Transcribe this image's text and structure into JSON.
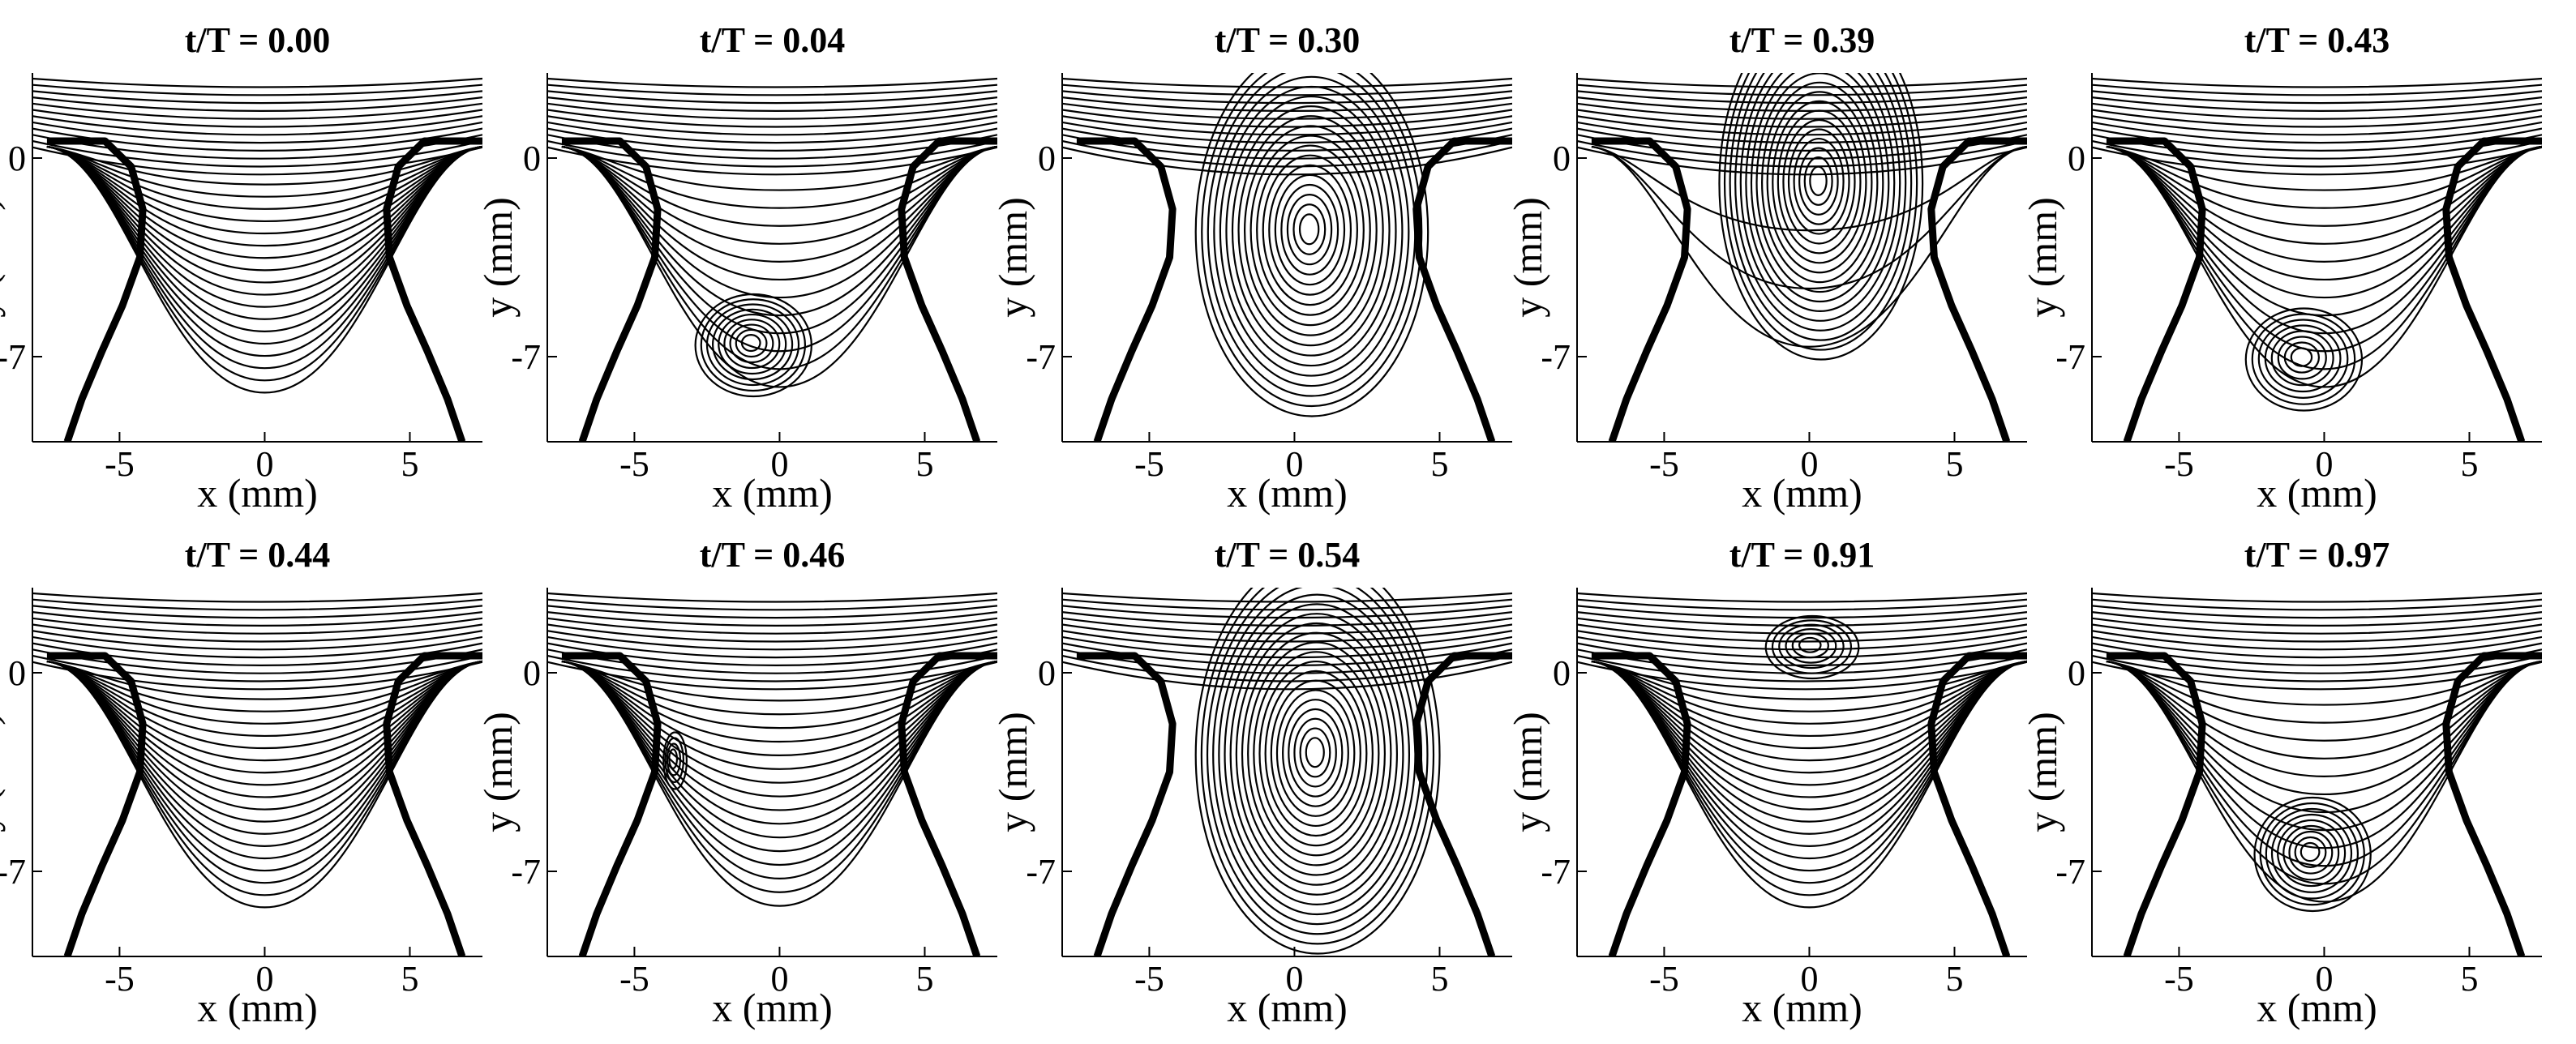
{
  "chart_data": [
    {
      "type": "contour",
      "title": "t/T = 0.00",
      "xlabel": "x (mm)",
      "ylabel": "y (mm)",
      "xticks": [
        -5,
        0,
        5
      ],
      "yticks": [
        0,
        -7
      ],
      "xlim": [
        -8,
        7.5
      ],
      "ylim": [
        -10,
        3
      ],
      "streamlines": 18,
      "vortex": null
    },
    {
      "type": "contour",
      "title": "t/T = 0.04",
      "xlabel": "x (mm)",
      "ylabel": "y (mm)",
      "xticks": [
        -5,
        0,
        5
      ],
      "yticks": [
        0,
        -7
      ],
      "xlim": [
        -8,
        7.5
      ],
      "ylim": [
        -10,
        3
      ],
      "streamlines": 12,
      "vortex": {
        "x": -1.0,
        "y": -6.5,
        "rx": 2.0,
        "ry": 1.8,
        "rings": 9
      }
    },
    {
      "type": "contour",
      "title": "t/T = 0.30",
      "xlabel": "x (mm)",
      "ylabel": "y (mm)",
      "xticks": [
        -5,
        0,
        5
      ],
      "yticks": [
        0,
        -7
      ],
      "xlim": [
        -8,
        7.5
      ],
      "ylim": [
        -10,
        3
      ],
      "streamlines": 0,
      "vortex": {
        "x": 0.5,
        "y": -2.5,
        "rx": 4.0,
        "ry": 6.5,
        "rings": 18
      }
    },
    {
      "type": "contour",
      "title": "t/T = 0.39",
      "xlabel": "x (mm)",
      "ylabel": "y (mm)",
      "xticks": [
        -5,
        0,
        5
      ],
      "yticks": [
        0,
        -7
      ],
      "xlim": [
        -8,
        7.5
      ],
      "ylim": [
        -10,
        3
      ],
      "streamlines": 3,
      "vortex": {
        "x": 0.3,
        "y": -0.8,
        "rx": 3.5,
        "ry": 6.2,
        "rings": 18
      }
    },
    {
      "type": "contour",
      "title": "t/T = 0.43",
      "xlabel": "x (mm)",
      "ylabel": "y (mm)",
      "xticks": [
        -5,
        0,
        5
      ],
      "yticks": [
        0,
        -7
      ],
      "xlim": [
        -8,
        7.5
      ],
      "ylim": [
        -10,
        3
      ],
      "streamlines": 12,
      "vortex": {
        "x": -0.8,
        "y": -7.0,
        "rx": 2.0,
        "ry": 1.8,
        "rings": 8
      }
    },
    {
      "type": "contour",
      "title": "t/T = 0.44",
      "xlabel": "x (mm)",
      "ylabel": "y (mm)",
      "xticks": [
        -5,
        0,
        5
      ],
      "yticks": [
        0,
        -7
      ],
      "xlim": [
        -8,
        7.5
      ],
      "ylim": [
        -10,
        3
      ],
      "streamlines": 18,
      "vortex": null
    },
    {
      "type": "contour",
      "title": "t/T = 0.46",
      "xlabel": "x (mm)",
      "ylabel": "y (mm)",
      "xticks": [
        -5,
        0,
        5
      ],
      "yticks": [
        0,
        -7
      ],
      "xlim": [
        -8,
        7.5
      ],
      "ylim": [
        -10,
        3
      ],
      "streamlines": 16,
      "vortex": {
        "x": -3.7,
        "y": -3.0,
        "rx": 0.4,
        "ry": 1.0,
        "rings": 4
      }
    },
    {
      "type": "contour",
      "title": "t/T = 0.54",
      "xlabel": "x (mm)",
      "ylabel": "y (mm)",
      "xticks": [
        -5,
        0,
        5
      ],
      "yticks": [
        0,
        -7
      ],
      "xlim": [
        -8,
        7.5
      ],
      "ylim": [
        -10,
        3
      ],
      "streamlines": 0,
      "vortex": {
        "x": 0.7,
        "y": -2.8,
        "rx": 4.2,
        "ry": 7.0,
        "rings": 20
      }
    },
    {
      "type": "contour",
      "title": "t/T = 0.91",
      "xlabel": "x (mm)",
      "ylabel": "y (mm)",
      "xticks": [
        -5,
        0,
        5
      ],
      "yticks": [
        0,
        -7
      ],
      "xlim": [
        -8,
        7.5
      ],
      "ylim": [
        -10,
        3
      ],
      "streamlines": 18,
      "vortex": {
        "x": 0.0,
        "y": 1.0,
        "rx": 1.6,
        "ry": 1.1,
        "rings": 6
      }
    },
    {
      "type": "contour",
      "title": "t/T = 0.97",
      "xlabel": "x (mm)",
      "ylabel": "y (mm)",
      "xticks": [
        -5,
        0,
        5
      ],
      "yticks": [
        0,
        -7
      ],
      "xlim": [
        -8,
        7.5
      ],
      "ylim": [
        -10,
        3
      ],
      "streamlines": 12,
      "vortex": {
        "x": -0.5,
        "y": -6.3,
        "rx": 2.0,
        "ry": 2.0,
        "rings": 9
      }
    }
  ]
}
